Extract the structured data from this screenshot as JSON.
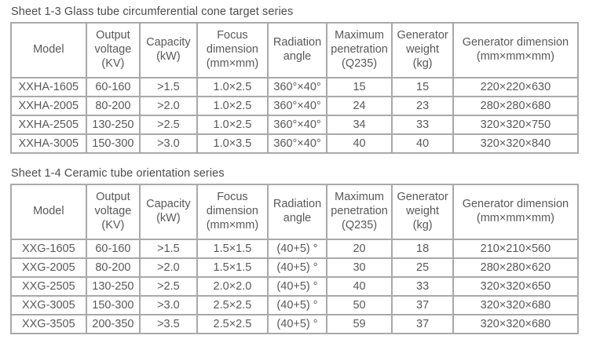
{
  "tables": [
    {
      "title": "Sheet 1-3 Glass tube circumferential cone target series",
      "headers": [
        "Model",
        "Output\nvoltage\n(KV)",
        "Capacity\n(kW)",
        "Focus\ndimension\n(mm×mm)",
        "Radiation\nangle",
        "Maximum\npenetration\n(Q235)",
        "Generator\nweight\n(kg)",
        "Generator dimension\n(mm×mm×mm)"
      ],
      "rows": [
        [
          "XXHA-1605",
          "60-160",
          ">1.5",
          "1.0×2.5",
          "360°×40°",
          "15",
          "15",
          "220×220×630"
        ],
        [
          "XXHA-2005",
          "80-200",
          ">2.0",
          "1.0×2.5",
          "360°×40°",
          "24",
          "23",
          "280×280×680"
        ],
        [
          "XXHA-2505",
          "130-250",
          ">2.5",
          "1.0×2.5",
          "360°×40°",
          "34",
          "33",
          "320×320×750"
        ],
        [
          "XXHA-3005",
          "150-300",
          ">3.0",
          "1.0×3.5",
          "360°×40°",
          "40",
          "40",
          "320×320×840"
        ]
      ]
    },
    {
      "title": "Sheet 1-4 Ceramic tube orientation series",
      "headers": [
        "Model",
        "Output\nvoltage\n(KV)",
        "Capacity\n(kW)",
        "Focus\ndimension\n(mm×mm)",
        "Radiation\nangle",
        "Maximum\npenetration\n(Q235)",
        "Generator\nweight\n(kg)",
        "Generator dimension\n(mm×mm×mm)"
      ],
      "rows": [
        [
          "XXG-1605",
          "60-160",
          ">1.5",
          "1.5×1.5",
          "(40+5) °",
          "20",
          "18",
          "210×210×560"
        ],
        [
          "XXG-2005",
          "80-200",
          ">2.0",
          "1.5×1.5",
          "(40+5) °",
          "30",
          "25",
          "280×280×620"
        ],
        [
          "XXG-2505",
          "130-250",
          ">2.5",
          "2.0×2.0",
          "(40+5) °",
          "40",
          "33",
          "320×320×650"
        ],
        [
          "XXG-3005",
          "150-300",
          ">3.0",
          "2.5×2.5",
          "(40+5) °",
          "50",
          "37",
          "320×320×680"
        ],
        [
          "XXG-3505",
          "200-350",
          ">3.5",
          "2.5×2.5",
          "(40+5) °",
          "59",
          "37",
          "320×320×680"
        ]
      ]
    }
  ],
  "colors": {
    "text": "#595959",
    "border": "#a9a9a9",
    "background": "#ffffff"
  }
}
